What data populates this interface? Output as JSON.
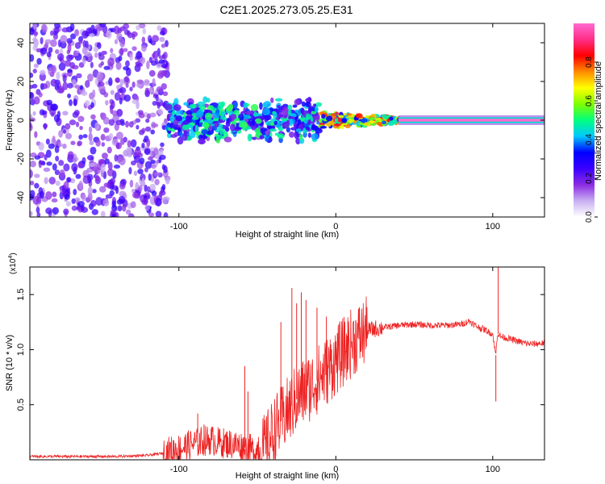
{
  "title": "C2E1.2025.273.05.25.E31",
  "chart_data": [
    {
      "type": "heatmap",
      "title": "C2E1.2025.273.05.25.E31",
      "xlabel": "Height of straight line (km)",
      "ylabel": "Frequency (Hz)",
      "xlim": [
        -195,
        133
      ],
      "ylim": [
        -50,
        50
      ],
      "xticks": [
        -100,
        0,
        100
      ],
      "yticks": [
        -40,
        -20,
        0,
        20,
        40
      ],
      "colorbar": {
        "label": "Normalized spectral amplitude",
        "range": [
          0,
          1
        ],
        "ticks": [
          0.0,
          0.2,
          0.4,
          0.6,
          0.8
        ],
        "tick_labels": [
          "0.0",
          "0.2",
          "0.4",
          "0.6",
          "0.8"
        ],
        "colors": [
          "#ffffff",
          "#c9b0f2",
          "#8a2be2",
          "#3b00ff",
          "#0000ff",
          "#00c8ff",
          "#00ff7f",
          "#7fff00",
          "#ffff00",
          "#ff8c00",
          "#ff0000",
          "#ff2d86",
          "#ff6ad0"
        ]
      },
      "regions": [
        {
          "name": "noise",
          "x_range": [
            -195,
            -107
          ],
          "freq_range": [
            -50,
            50
          ],
          "amplitude": 0.18
        },
        {
          "name": "transition",
          "x_range": [
            -107,
            -10
          ],
          "freq_range": [
            -12,
            12
          ],
          "amplitude": 0.35
        },
        {
          "name": "converging",
          "x_range": [
            -10,
            40
          ],
          "freq_range": [
            -4,
            4
          ],
          "amplitude": 0.6
        },
        {
          "name": "tone",
          "x_range": [
            40,
            133
          ],
          "freq": 0,
          "amplitude": 1.0
        }
      ]
    },
    {
      "type": "line",
      "xlabel": "Height of straight line (km)",
      "ylabel": "SNR (10 * v/v)",
      "y_multiplier_label": "(x10",
      "y_multiplier_exp": "4",
      "y_multiplier_close": ")",
      "xlim": [
        -195,
        133
      ],
      "ylim": [
        0,
        1.75
      ],
      "xticks": [
        -100,
        0,
        100
      ],
      "yticks": [
        0.5,
        1.0,
        1.5
      ],
      "ytick_labels": [
        "0.5",
        "1.0",
        "1.5"
      ],
      "series": [
        {
          "name": "SNR",
          "color": "#ee2222",
          "x": [
            -195,
            -170,
            -140,
            -120,
            -110,
            -100,
            -92,
            -85,
            -80,
            -75,
            -70,
            -65,
            -60,
            -55,
            -50,
            -45,
            -40,
            -35,
            -30,
            -25,
            -20,
            -15,
            -10,
            -5,
            0,
            5,
            10,
            15,
            20,
            25,
            30,
            40,
            50,
            60,
            70,
            80,
            85,
            90,
            95,
            100,
            102,
            103,
            105,
            110,
            115,
            120,
            125,
            133
          ],
          "y": [
            0.03,
            0.03,
            0.03,
            0.04,
            0.06,
            0.1,
            0.14,
            0.17,
            0.18,
            0.16,
            0.15,
            0.14,
            0.12,
            0.1,
            0.07,
            0.1,
            0.25,
            0.35,
            0.45,
            0.55,
            0.62,
            0.68,
            0.75,
            0.82,
            0.9,
            0.98,
            1.06,
            1.12,
            1.17,
            1.19,
            1.2,
            1.22,
            1.23,
            1.22,
            1.22,
            1.23,
            1.26,
            1.21,
            1.18,
            1.14,
            0.95,
            1.15,
            1.12,
            1.1,
            1.08,
            1.06,
            1.05,
            1.06
          ],
          "spikes": [
            {
              "x": -88,
              "y": 0.42
            },
            {
              "x": -84,
              "y": 0.32
            },
            {
              "x": -79,
              "y": 0.3
            },
            {
              "x": -58,
              "y": 0.85
            },
            {
              "x": -56,
              "y": 0.62
            },
            {
              "x": -35,
              "y": 1.25
            },
            {
              "x": -28,
              "y": 1.56
            },
            {
              "x": -25,
              "y": 1.42
            },
            {
              "x": -22,
              "y": 1.52
            },
            {
              "x": -19,
              "y": 1.45
            },
            {
              "x": -12,
              "y": 1.38
            },
            {
              "x": -6,
              "y": 1.3
            },
            {
              "x": 1,
              "y": 1.15
            },
            {
              "x": 102,
              "y": 0.53
            },
            {
              "x": 103.5,
              "y": 1.75
            }
          ]
        }
      ]
    }
  ]
}
